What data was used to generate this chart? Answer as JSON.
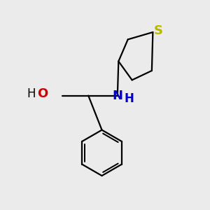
{
  "background_color": "#ebebeb",
  "bond_color": "#000000",
  "bond_width": 1.6,
  "S_color": "#b8b800",
  "N_color": "#0000cc",
  "O_color": "#cc0000",
  "figsize": [
    3.0,
    3.0
  ],
  "dpi": 100,
  "xlim": [
    0,
    10
  ],
  "ylim": [
    0,
    10
  ]
}
